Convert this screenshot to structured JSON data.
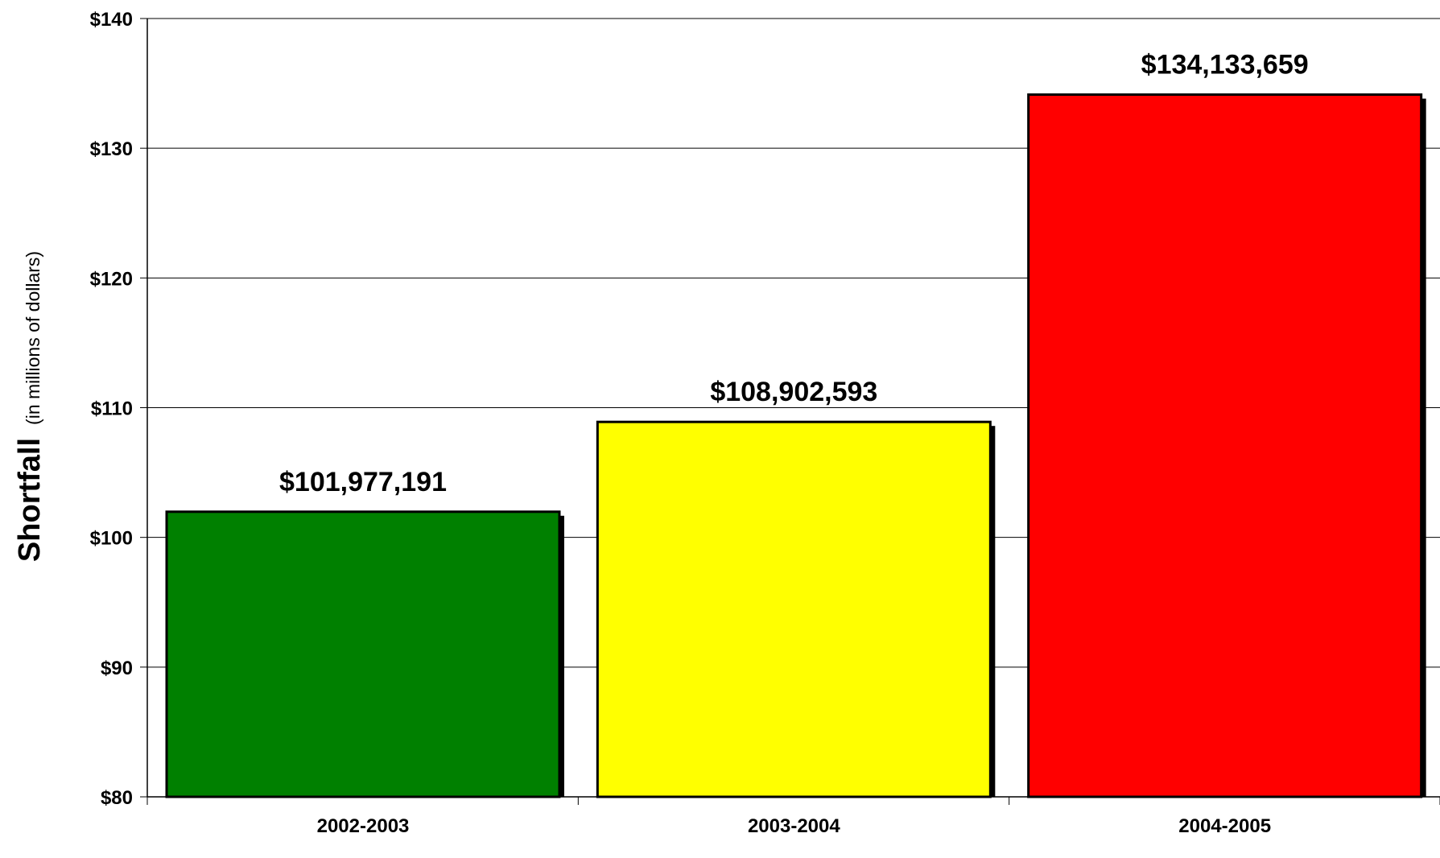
{
  "chart_data": {
    "type": "bar",
    "categories": [
      "2002-2003",
      "2003-2004",
      "2004-2005"
    ],
    "values": [
      101977191,
      108902593,
      134133659
    ],
    "data_labels": [
      "$101,977,191",
      "$108,902,593",
      "$134,133,659"
    ],
    "colors": [
      "#008000",
      "#FFFF00",
      "#FF0000"
    ],
    "ylabel": "Shortfall",
    "ylabel_sub": "(in millions of dollars)",
    "ylim": [
      80,
      140
    ],
    "yticks": [
      80,
      90,
      100,
      110,
      120,
      130,
      140
    ],
    "ytick_labels": [
      "$80",
      "$90",
      "$100",
      "$110",
      "$120",
      "$130",
      "$140"
    ],
    "grid": true,
    "legend": "none"
  }
}
